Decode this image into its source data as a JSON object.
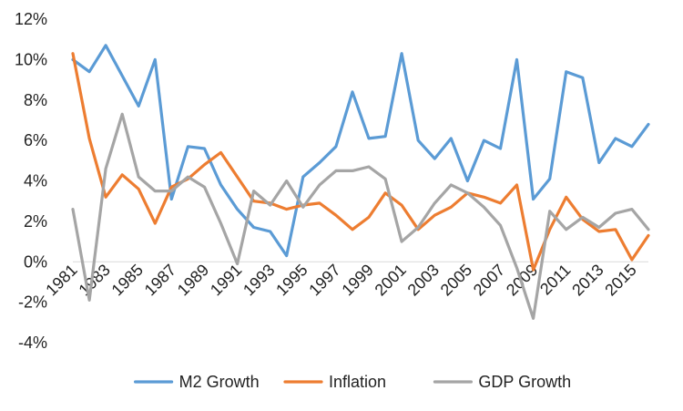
{
  "chart_data": {
    "type": "line",
    "title": "",
    "xlabel": "",
    "ylabel": "",
    "x": [
      1981,
      1982,
      1983,
      1984,
      1985,
      1986,
      1987,
      1988,
      1989,
      1990,
      1991,
      1992,
      1993,
      1994,
      1995,
      1996,
      1997,
      1998,
      1999,
      2000,
      2001,
      2002,
      2003,
      2004,
      2005,
      2006,
      2007,
      2008,
      2009,
      2010,
      2011,
      2012,
      2013,
      2014,
      2015,
      2016
    ],
    "x_tick_labels": [
      "1981",
      "1983",
      "1985",
      "1987",
      "1989",
      "1991",
      "1993",
      "1995",
      "1997",
      "1999",
      "2001",
      "2003",
      "2005",
      "2007",
      "2009",
      "2011",
      "2013",
      "2015"
    ],
    "ylim": [
      -4,
      12
    ],
    "y_ticks": [
      -4,
      -2,
      0,
      2,
      4,
      6,
      8,
      10,
      12
    ],
    "y_tick_labels": [
      "-4%",
      "-2%",
      "0%",
      "2%",
      "4%",
      "6%",
      "8%",
      "10%",
      "12%"
    ],
    "grid": false,
    "legend_position": "bottom",
    "series": [
      {
        "name": "M2 Growth",
        "color": "#5b9bd5",
        "values": [
          10.0,
          9.4,
          10.7,
          9.2,
          7.7,
          10.0,
          3.1,
          5.7,
          5.6,
          3.8,
          2.6,
          1.7,
          1.5,
          0.3,
          4.2,
          4.9,
          5.7,
          8.4,
          6.1,
          6.2,
          10.3,
          6.0,
          5.1,
          6.1,
          4.0,
          6.0,
          5.6,
          10.0,
          3.1,
          4.1,
          9.4,
          9.1,
          4.9,
          6.1,
          5.7,
          6.8
        ]
      },
      {
        "name": "Inflation",
        "color": "#ed7d31",
        "values": [
          10.3,
          6.1,
          3.2,
          4.3,
          3.6,
          1.9,
          3.7,
          4.1,
          4.8,
          5.4,
          4.2,
          3.0,
          2.9,
          2.6,
          2.8,
          2.9,
          2.3,
          1.6,
          2.2,
          3.4,
          2.8,
          1.6,
          2.3,
          2.7,
          3.4,
          3.2,
          2.9,
          3.8,
          -0.4,
          1.6,
          3.2,
          2.1,
          1.5,
          1.6,
          0.1,
          1.3
        ]
      },
      {
        "name": "GDP Growth",
        "color": "#a5a5a5",
        "values": [
          2.6,
          -1.9,
          4.6,
          7.3,
          4.2,
          3.5,
          3.5,
          4.2,
          3.7,
          1.9,
          -0.1,
          3.5,
          2.8,
          4.0,
          2.7,
          3.8,
          4.5,
          4.5,
          4.7,
          4.1,
          1.0,
          1.7,
          2.9,
          3.8,
          3.4,
          2.7,
          1.8,
          -0.3,
          -2.8,
          2.5,
          1.6,
          2.2,
          1.7,
          2.4,
          2.6,
          1.6
        ]
      }
    ]
  }
}
